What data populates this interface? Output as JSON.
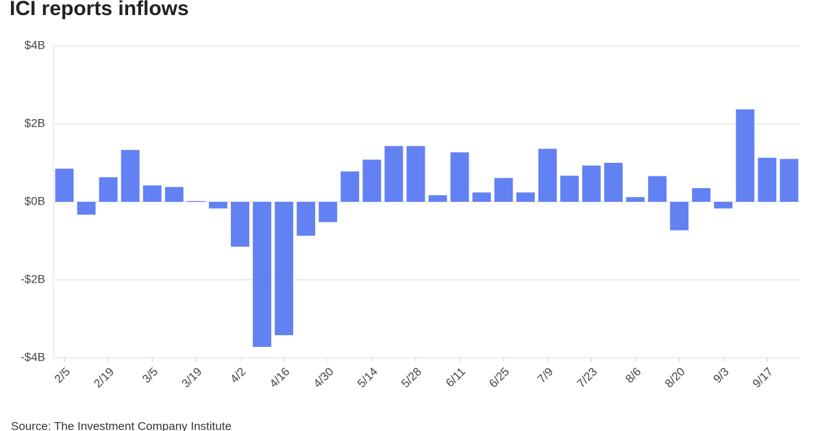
{
  "chart_data": {
    "type": "bar",
    "title": "ICI reports inflows",
    "source": "Source: The Investment Company Institute",
    "categories": [
      "2/5",
      null,
      "2/19",
      null,
      "3/5",
      null,
      "3/19",
      null,
      "4/2",
      null,
      "4/16",
      null,
      "4/30",
      null,
      "5/14",
      null,
      "5/28",
      null,
      "6/11",
      null,
      "6/25",
      null,
      "7/9",
      null,
      "7/23",
      null,
      "8/6",
      null,
      "8/20",
      null,
      "9/3",
      null,
      "9/17",
      null
    ],
    "values": [
      0.85,
      -0.33,
      0.63,
      1.33,
      0.42,
      0.38,
      0.02,
      -0.17,
      -1.15,
      -3.72,
      -3.42,
      -0.87,
      -0.52,
      0.78,
      1.08,
      1.43,
      1.43,
      0.17,
      1.27,
      0.24,
      0.61,
      0.24,
      1.36,
      0.67,
      0.93,
      1.0,
      0.12,
      0.66,
      -0.73,
      0.35,
      -0.17,
      2.37,
      1.13,
      1.1
    ],
    "color": "#6281f2",
    "ylim": [
      -4,
      4
    ],
    "yticks": [
      {
        "value": -4,
        "label": "-$4B"
      },
      {
        "value": -2,
        "label": "-$2B"
      },
      {
        "value": 0,
        "label": "$0B"
      },
      {
        "value": 2,
        "label": "$2B"
      },
      {
        "value": 4,
        "label": "$4B"
      }
    ],
    "grid": true
  }
}
